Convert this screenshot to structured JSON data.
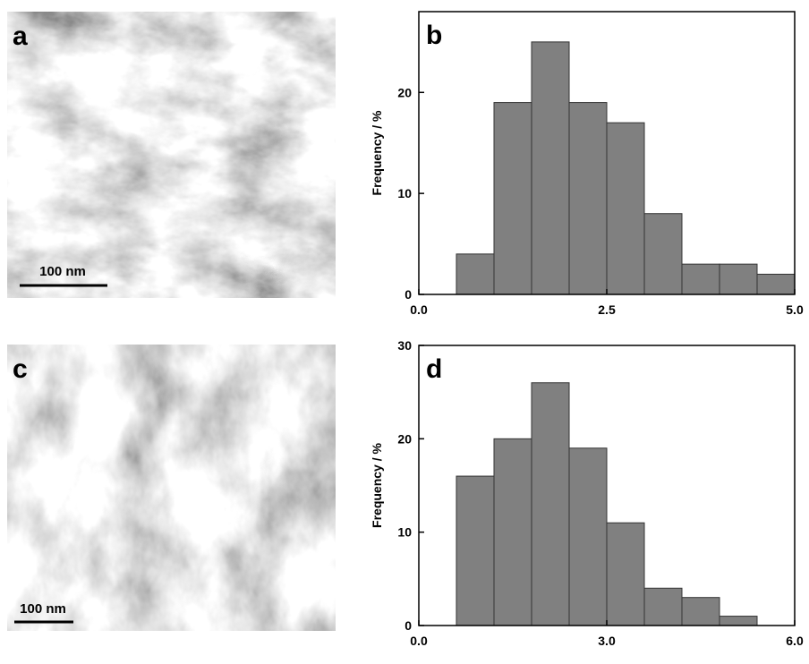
{
  "images": [
    {
      "label": "a",
      "scale_bar": "100 nm"
    },
    {
      "label": "c",
      "scale_bar": "100 nm"
    }
  ],
  "chart_data": [
    {
      "type": "histogram",
      "label": "b",
      "y_label": "Frequency / %",
      "bins": [
        0.5,
        1.0,
        1.5,
        2.0,
        2.5,
        3.0,
        3.5,
        4.0,
        4.5,
        5.0
      ],
      "counts": [
        4,
        19,
        25,
        19,
        17,
        8,
        3,
        3,
        2
      ],
      "color": "#808080",
      "xlim": [
        0,
        5
      ],
      "xticks": [
        {
          "value": 0,
          "label": "0.0"
        },
        {
          "value": 2.5,
          "label": "2.5"
        },
        {
          "value": 5,
          "label": "5.0"
        }
      ],
      "ylim": [
        0,
        28
      ],
      "yticks": [
        0,
        10,
        20
      ]
    },
    {
      "type": "histogram",
      "label": "d",
      "y_label": "Frequency / %",
      "bins": [
        0.6,
        1.2,
        1.8,
        2.4,
        3.0,
        3.6,
        4.2,
        4.8,
        5.4
      ],
      "counts": [
        16,
        20,
        26,
        19,
        11,
        4,
        3,
        1
      ],
      "color": "#808080",
      "xlim": [
        0,
        6
      ],
      "xticks": [
        {
          "value": 0,
          "label": "0.0"
        },
        {
          "value": 3,
          "label": "3.0"
        },
        {
          "value": 6,
          "label": "6.0"
        }
      ],
      "ylim": [
        0,
        30
      ],
      "yticks": [
        0,
        10,
        20,
        30
      ]
    }
  ]
}
